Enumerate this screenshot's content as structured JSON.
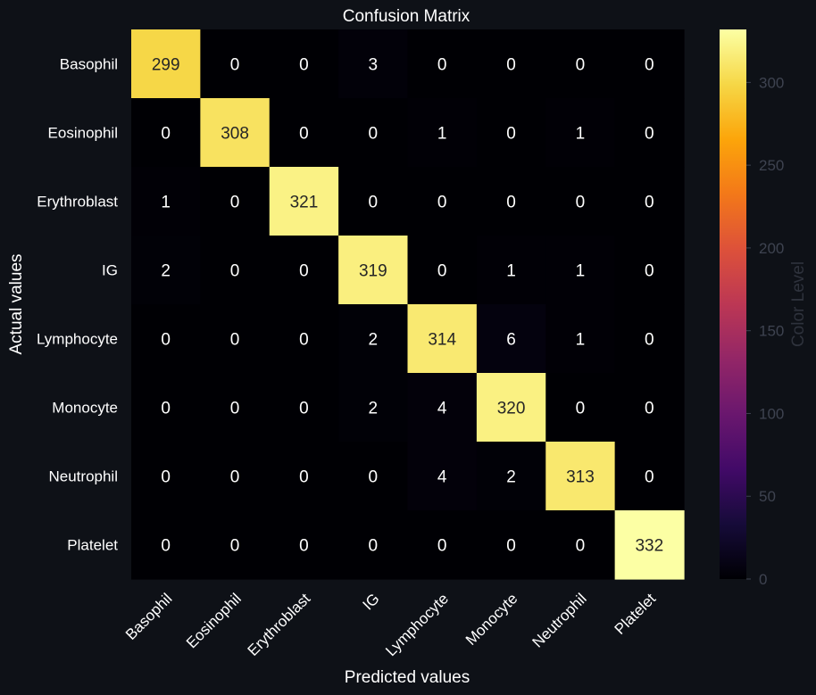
{
  "chart_data": {
    "type": "heatmap",
    "title": "Confusion Matrix",
    "xlabel": "Predicted values",
    "ylabel": "Actual values",
    "x_categories": [
      "Basophil",
      "Eosinophil",
      "Erythroblast",
      "IG",
      "Lymphocyte",
      "Monocyte",
      "Neutrophil",
      "Platelet"
    ],
    "y_categories": [
      "Basophil",
      "Eosinophil",
      "Erythroblast",
      "IG",
      "Lymphocyte",
      "Monocyte",
      "Neutrophil",
      "Platelet"
    ],
    "values": [
      [
        299,
        0,
        0,
        3,
        0,
        0,
        0,
        0
      ],
      [
        0,
        308,
        0,
        0,
        1,
        0,
        1,
        0
      ],
      [
        1,
        0,
        321,
        0,
        0,
        0,
        0,
        0
      ],
      [
        2,
        0,
        0,
        319,
        0,
        1,
        1,
        0
      ],
      [
        0,
        0,
        0,
        2,
        314,
        6,
        1,
        0
      ],
      [
        0,
        0,
        0,
        2,
        4,
        320,
        0,
        0
      ],
      [
        0,
        0,
        0,
        0,
        4,
        2,
        313,
        0
      ],
      [
        0,
        0,
        0,
        0,
        0,
        0,
        0,
        332
      ]
    ],
    "colormap": "inferno",
    "colorbar": {
      "label": "Color Level",
      "range": [
        0,
        332
      ],
      "ticks": [
        0,
        50,
        100,
        150,
        200,
        250,
        300
      ]
    },
    "annotation_colors": {
      "dark_cell": "#ffffff",
      "light_cell": "#262626"
    }
  }
}
